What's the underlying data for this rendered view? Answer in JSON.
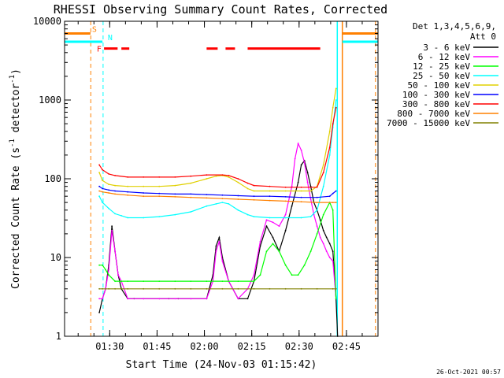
{
  "title": "RHESSI Observing Summary Count Rates, Corrected",
  "footer_date": "26-Oct-2021 00:57",
  "flag_labels": {
    "s": "S",
    "n": "N",
    "f": "F"
  },
  "chart_data": {
    "type": "line",
    "title": "RHESSI Observing Summary Count Rates, Corrected",
    "xlabel": "Start Time (24-Nov-03 01:15:42)",
    "ylabel": "Corrected Count Rate (s⁻¹ detector⁻¹)",
    "ylabel_parts": [
      "Corrected Count Rate (s",
      "-1",
      " detector",
      "-1",
      ")"
    ],
    "y_scale": "log",
    "ylim": [
      1,
      10000
    ],
    "xlim_minutes": [
      0,
      99.3
    ],
    "y_ticks": [
      {
        "v": 1,
        "label": "1"
      },
      {
        "v": 10,
        "label": "10"
      },
      {
        "v": 100,
        "label": "100"
      },
      {
        "v": 1000,
        "label": "1000"
      },
      {
        "v": 10000,
        "label": "10000"
      }
    ],
    "x_ticks": [
      {
        "t": 14.3,
        "label": "01:30"
      },
      {
        "t": 29.3,
        "label": "01:45"
      },
      {
        "t": 44.3,
        "label": "02:00"
      },
      {
        "t": 59.3,
        "label": "02:15"
      },
      {
        "t": 74.3,
        "label": "02:30"
      },
      {
        "t": 89.3,
        "label": "02:45"
      }
    ],
    "legend_header": [
      "Det 1,3,4,5,6,9,",
      "Att 0"
    ],
    "legend_placement": "right",
    "series": [
      {
        "name": "3 - 6 keV",
        "color": "#000000",
        "points": [
          [
            11,
            2
          ],
          [
            12,
            3
          ],
          [
            13,
            4
          ],
          [
            14,
            8
          ],
          [
            15,
            25
          ],
          [
            16,
            12
          ],
          [
            17,
            6
          ],
          [
            18,
            4
          ],
          [
            20,
            3
          ],
          [
            22,
            3
          ],
          [
            25,
            3
          ],
          [
            30,
            3
          ],
          [
            33,
            3
          ],
          [
            36,
            3
          ],
          [
            40,
            3
          ],
          [
            45,
            3
          ],
          [
            47,
            6
          ],
          [
            48,
            14
          ],
          [
            49,
            18
          ],
          [
            50,
            10
          ],
          [
            52,
            5
          ],
          [
            55,
            3
          ],
          [
            58,
            3
          ],
          [
            60,
            5
          ],
          [
            62,
            14
          ],
          [
            64,
            25
          ],
          [
            66,
            18
          ],
          [
            68,
            12
          ],
          [
            70,
            22
          ],
          [
            72,
            45
          ],
          [
            74,
            90
          ],
          [
            75,
            150
          ],
          [
            76,
            170
          ],
          [
            77,
            120
          ],
          [
            78,
            80
          ],
          [
            79,
            50
          ],
          [
            80,
            40
          ],
          [
            81,
            30
          ],
          [
            82,
            22
          ],
          [
            83,
            18
          ],
          [
            84,
            15
          ],
          [
            85,
            12
          ],
          [
            86,
            3
          ],
          [
            86.5,
            1
          ]
        ]
      },
      {
        "name": "6 - 12 keV",
        "color": "#ff00ff",
        "points": [
          [
            11,
            3
          ],
          [
            12,
            3
          ],
          [
            13,
            4
          ],
          [
            14,
            7
          ],
          [
            15,
            22
          ],
          [
            16,
            12
          ],
          [
            17,
            6
          ],
          [
            18,
            5
          ],
          [
            20,
            3
          ],
          [
            25,
            3
          ],
          [
            30,
            3
          ],
          [
            35,
            3
          ],
          [
            40,
            3
          ],
          [
            45,
            3
          ],
          [
            47,
            5
          ],
          [
            48,
            12
          ],
          [
            49,
            16
          ],
          [
            50,
            9
          ],
          [
            52,
            5
          ],
          [
            55,
            3
          ],
          [
            58,
            4
          ],
          [
            60,
            6
          ],
          [
            62,
            16
          ],
          [
            64,
            30
          ],
          [
            66,
            28
          ],
          [
            68,
            25
          ],
          [
            70,
            35
          ],
          [
            72,
            80
          ],
          [
            73,
            180
          ],
          [
            74,
            280
          ],
          [
            75,
            230
          ],
          [
            76,
            160
          ],
          [
            77,
            90
          ],
          [
            78,
            55
          ],
          [
            79,
            35
          ],
          [
            80,
            25
          ],
          [
            81,
            18
          ],
          [
            82,
            15
          ],
          [
            83,
            12
          ],
          [
            84,
            10
          ],
          [
            85,
            9
          ],
          [
            86,
            3
          ]
        ]
      },
      {
        "name": "12 - 25 keV",
        "color": "#00ff00",
        "points": [
          [
            11,
            8
          ],
          [
            12,
            8
          ],
          [
            13,
            7
          ],
          [
            14,
            6
          ],
          [
            16,
            5
          ],
          [
            18,
            5
          ],
          [
            20,
            5
          ],
          [
            25,
            5
          ],
          [
            30,
            5
          ],
          [
            35,
            5
          ],
          [
            40,
            5
          ],
          [
            45,
            5
          ],
          [
            50,
            5
          ],
          [
            55,
            5
          ],
          [
            60,
            5
          ],
          [
            62,
            6
          ],
          [
            64,
            12
          ],
          [
            66,
            15
          ],
          [
            68,
            12
          ],
          [
            70,
            8
          ],
          [
            72,
            6
          ],
          [
            74,
            6
          ],
          [
            76,
            8
          ],
          [
            78,
            12
          ],
          [
            80,
            20
          ],
          [
            82,
            35
          ],
          [
            84,
            50
          ],
          [
            85,
            40
          ],
          [
            86,
            3
          ]
        ]
      },
      {
        "name": "25 - 50 keV",
        "color": "#00ffff",
        "points": [
          [
            11,
            60
          ],
          [
            12,
            50
          ],
          [
            14,
            42
          ],
          [
            16,
            36
          ],
          [
            18,
            34
          ],
          [
            20,
            32
          ],
          [
            25,
            32
          ],
          [
            30,
            33
          ],
          [
            35,
            35
          ],
          [
            40,
            38
          ],
          [
            45,
            45
          ],
          [
            48,
            48
          ],
          [
            50,
            50
          ],
          [
            52,
            48
          ],
          [
            55,
            40
          ],
          [
            58,
            35
          ],
          [
            60,
            33
          ],
          [
            65,
            32
          ],
          [
            70,
            32
          ],
          [
            75,
            32
          ],
          [
            78,
            33
          ],
          [
            80,
            40
          ],
          [
            82,
            80
          ],
          [
            84,
            200
          ],
          [
            85,
            450
          ],
          [
            86,
            1000
          ]
        ]
      },
      {
        "name": "50 - 100 keV",
        "color": "#e0d000",
        "points": [
          [
            11,
            120
          ],
          [
            12,
            95
          ],
          [
            14,
            85
          ],
          [
            16,
            82
          ],
          [
            20,
            80
          ],
          [
            25,
            80
          ],
          [
            30,
            80
          ],
          [
            35,
            82
          ],
          [
            40,
            88
          ],
          [
            45,
            100
          ],
          [
            48,
            108
          ],
          [
            50,
            110
          ],
          [
            52,
            105
          ],
          [
            55,
            90
          ],
          [
            58,
            75
          ],
          [
            60,
            70
          ],
          [
            65,
            70
          ],
          [
            70,
            70
          ],
          [
            75,
            70
          ],
          [
            78,
            70
          ],
          [
            80,
            80
          ],
          [
            82,
            150
          ],
          [
            84,
            400
          ],
          [
            85,
            800
          ],
          [
            86,
            1400
          ]
        ]
      },
      {
        "name": "100 - 300 keV",
        "color": "#0000ff",
        "points": [
          [
            11,
            80
          ],
          [
            12,
            75
          ],
          [
            14,
            72
          ],
          [
            16,
            70
          ],
          [
            20,
            68
          ],
          [
            25,
            66
          ],
          [
            30,
            65
          ],
          [
            35,
            64
          ],
          [
            40,
            64
          ],
          [
            45,
            63
          ],
          [
            50,
            62
          ],
          [
            55,
            61
          ],
          [
            60,
            60
          ],
          [
            65,
            60
          ],
          [
            70,
            59
          ],
          [
            75,
            58
          ],
          [
            80,
            58
          ],
          [
            84,
            60
          ],
          [
            85,
            65
          ],
          [
            86,
            70
          ]
        ]
      },
      {
        "name": "300 - 800 keV",
        "color": "#ff0000",
        "points": [
          [
            11,
            150
          ],
          [
            12,
            130
          ],
          [
            14,
            115
          ],
          [
            16,
            110
          ],
          [
            20,
            105
          ],
          [
            25,
            105
          ],
          [
            30,
            105
          ],
          [
            35,
            105
          ],
          [
            40,
            108
          ],
          [
            45,
            112
          ],
          [
            50,
            112
          ],
          [
            52,
            110
          ],
          [
            55,
            100
          ],
          [
            58,
            88
          ],
          [
            60,
            82
          ],
          [
            65,
            80
          ],
          [
            70,
            78
          ],
          [
            75,
            78
          ],
          [
            80,
            78
          ],
          [
            82,
            120
          ],
          [
            84,
            250
          ],
          [
            85,
            500
          ],
          [
            86,
            800
          ]
        ]
      },
      {
        "name": "800 - 7000 keV",
        "color": "#ff8000",
        "points": [
          [
            11,
            70
          ],
          [
            12,
            68
          ],
          [
            14,
            66
          ],
          [
            16,
            64
          ],
          [
            20,
            62
          ],
          [
            25,
            60
          ],
          [
            30,
            60
          ],
          [
            35,
            59
          ],
          [
            40,
            58
          ],
          [
            45,
            57
          ],
          [
            50,
            56
          ],
          [
            55,
            55
          ],
          [
            60,
            54
          ],
          [
            65,
            53
          ],
          [
            70,
            52
          ],
          [
            75,
            51
          ],
          [
            80,
            50
          ],
          [
            85,
            50
          ],
          [
            86,
            50
          ]
        ]
      },
      {
        "name": "7000 - 15000 keV",
        "color": "#808000",
        "points": [
          [
            11,
            4
          ],
          [
            12,
            4
          ],
          [
            14,
            4
          ],
          [
            16,
            4
          ],
          [
            20,
            4
          ],
          [
            25,
            4
          ],
          [
            30,
            4
          ],
          [
            35,
            4
          ],
          [
            40,
            4
          ],
          [
            45,
            4
          ],
          [
            50,
            4
          ],
          [
            55,
            4
          ],
          [
            60,
            4
          ],
          [
            65,
            4
          ],
          [
            70,
            4
          ],
          [
            75,
            4
          ],
          [
            80,
            4
          ],
          [
            85,
            4
          ],
          [
            86,
            4
          ]
        ]
      }
    ],
    "flags": {
      "s_value": 7000,
      "n_value": 5500,
      "f_value": 4500,
      "s_segments": [
        [
          0,
          8.2
        ],
        [
          88,
          99.3
        ]
      ],
      "n_segments": [
        [
          0,
          12
        ],
        [
          88,
          99.3
        ]
      ],
      "f_segments": [
        [
          12.5,
          16.8
        ],
        [
          18,
          20.5
        ],
        [
          45,
          48.5
        ],
        [
          51,
          54
        ],
        [
          58,
          81
        ]
      ],
      "orange_dash_t": [
        8.3,
        98.5
      ],
      "cyan_dash_t": [
        12.2
      ],
      "cyan_solid_t": [
        86.4
      ],
      "orange_solid_t": [
        88
      ]
    }
  }
}
